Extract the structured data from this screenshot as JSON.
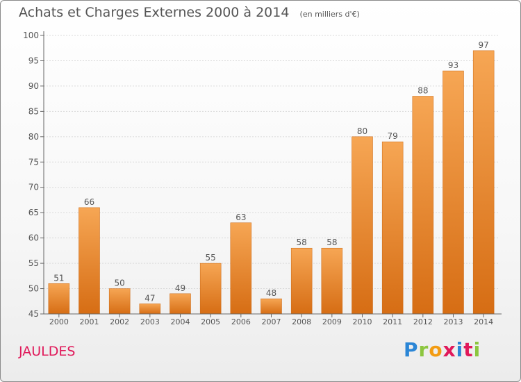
{
  "header": {
    "title": "Achats et Charges Externes 2000 à 2014",
    "subtitle": "(en milliers d'€)"
  },
  "footer": {
    "commune": "JAULDES",
    "logo_text": "Proxiti"
  },
  "colors": {
    "bar_top": "#f6a654",
    "bar_bottom": "#d66d14",
    "commune": "#e0195a",
    "text": "#555555",
    "grid": "#d9d9d9"
  },
  "chart_data": {
    "type": "bar",
    "title": "Achats et Charges Externes 2000 à 2014",
    "subtitle": "(en milliers d'€)",
    "xlabel": "",
    "ylabel": "",
    "categories": [
      "2000",
      "2001",
      "2002",
      "2003",
      "2004",
      "2005",
      "2006",
      "2007",
      "2008",
      "2009",
      "2010",
      "2011",
      "2012",
      "2013",
      "2014"
    ],
    "values": [
      51,
      66,
      50,
      47,
      49,
      55,
      63,
      48,
      58,
      58,
      80,
      79,
      88,
      93,
      97
    ],
    "ylim": [
      45,
      100
    ],
    "yticks": [
      45,
      50,
      55,
      60,
      65,
      70,
      75,
      80,
      85,
      90,
      95,
      100
    ],
    "grid": true,
    "data_labels": true
  }
}
